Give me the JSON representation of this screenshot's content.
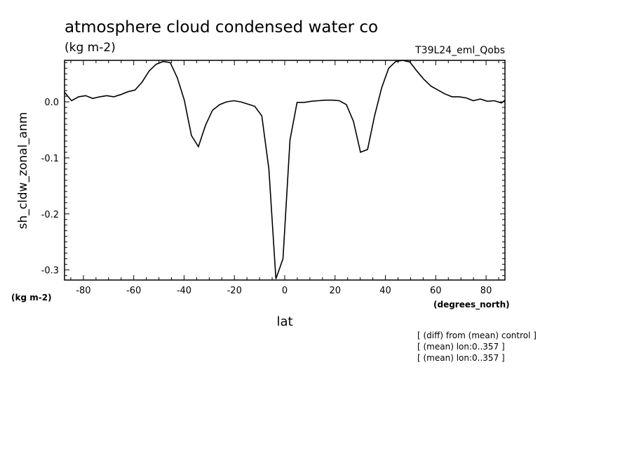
{
  "chart_data": {
    "type": "line",
    "title": "atmosphere cloud condensed water co",
    "subtitle": "(kg m-2)",
    "run_label": "T39L24_eml_Qobs",
    "xlabel": "lat",
    "ylabel": "sh_cldw_zonal_anm",
    "x_units": "(degrees_north)",
    "y_units": "(kg m-2)",
    "xlim": [
      -87.5,
      87.5
    ],
    "ylim": [
      -0.318,
      0.074
    ],
    "x_ticks": [
      -80,
      -60,
      -40,
      -20,
      0,
      20,
      40,
      60,
      80
    ],
    "x_tick_labels": [
      "-80",
      "-60",
      "-40",
      "-20",
      "0",
      "20",
      "40",
      "60",
      "80"
    ],
    "y_ticks": [
      0.0,
      -0.1,
      -0.2,
      -0.3
    ],
    "y_tick_labels": [
      "0.0",
      "-0.1",
      "-0.2",
      "-0.3"
    ],
    "grid": false,
    "series": [
      {
        "x": [
          -87.5,
          -84.7,
          -81.9,
          -79.1,
          -76.3,
          -73.5,
          -70.7,
          -67.9,
          -65.1,
          -62.3,
          -59.5,
          -56.7,
          -53.9,
          -51.1,
          -48.3,
          -45.5,
          -42.7,
          -39.9,
          -37.1,
          -34.3,
          -31.5,
          -28.7,
          -25.9,
          -23.1,
          -20.3,
          -17.5,
          -14.7,
          -11.9,
          -9.1,
          -6.3,
          -3.5,
          -0.7,
          2.1,
          4.9,
          7.7,
          10.5,
          13.3,
          16.1,
          18.9,
          21.7,
          24.5,
          27.3,
          30.1,
          32.9,
          35.7,
          38.5,
          41.3,
          44.1,
          46.9,
          49.7,
          52.5,
          55.3,
          58.1,
          60.9,
          63.7,
          66.5,
          69.3,
          72.1,
          74.9,
          77.7,
          80.5,
          83.3,
          86.1,
          87.5
        ],
        "values": [
          0.017,
          0.002,
          0.009,
          0.011,
          0.006,
          0.009,
          0.011,
          0.009,
          0.013,
          0.018,
          0.021,
          0.035,
          0.055,
          0.067,
          0.072,
          0.07,
          0.043,
          0.003,
          -0.06,
          -0.08,
          -0.042,
          -0.015,
          -0.005,
          0.0,
          0.002,
          0.0,
          -0.004,
          -0.008,
          -0.025,
          -0.12,
          -0.316,
          -0.28,
          -0.068,
          -0.001,
          -0.001,
          0.001,
          0.002,
          0.003,
          0.003,
          0.002,
          -0.005,
          -0.035,
          -0.09,
          -0.085,
          -0.025,
          0.025,
          0.06,
          0.072,
          0.074,
          0.071,
          0.055,
          0.04,
          0.028,
          0.021,
          0.014,
          0.009,
          0.009,
          0.007,
          0.002,
          0.005,
          0.001,
          0.002,
          -0.002,
          0.003
        ]
      }
    ],
    "notes": [
      "[ (diff) from (mean) control ]",
      "[ (mean) lon:0..357 ]",
      "[ (mean) lon:0..357 ]"
    ]
  }
}
